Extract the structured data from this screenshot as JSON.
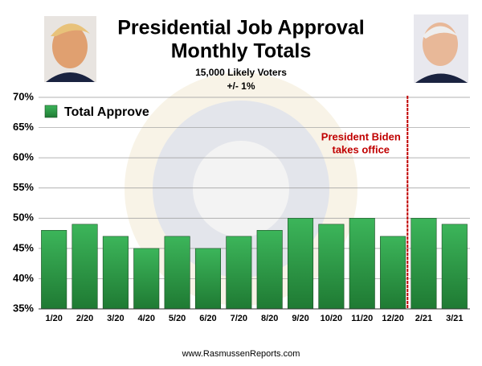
{
  "chart_data": {
    "type": "bar",
    "title": [
      "Presidential Job Approval",
      "Monthly Totals"
    ],
    "subtitle": [
      "15,000 Likely Voters",
      "+/- 1%"
    ],
    "categories": [
      "1/20",
      "2/20",
      "3/20",
      "4/20",
      "5/20",
      "6/20",
      "7/20",
      "8/20",
      "9/20",
      "10/20",
      "11/20",
      "12/20",
      "2/21",
      "3/21"
    ],
    "series": [
      {
        "name": "Total Approve",
        "color": "#2e9e44",
        "values": [
          48,
          49,
          47,
          45,
          47,
          45,
          47,
          48,
          50,
          49,
          50,
          47,
          50,
          49
        ]
      }
    ],
    "ylim": [
      35,
      70
    ],
    "yticks": [
      {
        "value": 35,
        "label": "35%"
      },
      {
        "value": 40,
        "label": "40%"
      },
      {
        "value": 45,
        "label": "45%"
      },
      {
        "value": 50,
        "label": "50%"
      },
      {
        "value": 55,
        "label": "55%"
      },
      {
        "value": 60,
        "label": "60%"
      },
      {
        "value": 65,
        "label": "65%"
      },
      {
        "value": 70,
        "label": "70%"
      }
    ],
    "grid": true,
    "annotation": [
      "President Biden",
      "takes office"
    ],
    "source": "www.RasmussenReports.com"
  }
}
